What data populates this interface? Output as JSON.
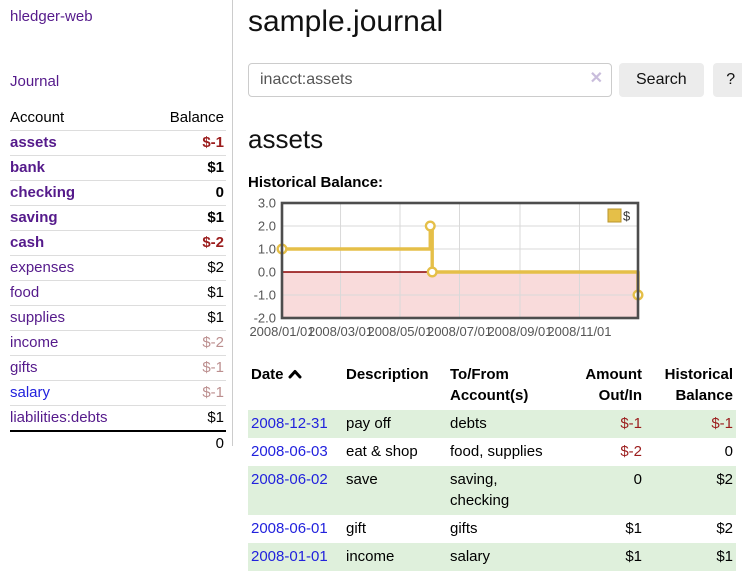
{
  "app": {
    "brand": "hledger-web",
    "nav": {
      "journal": "Journal"
    }
  },
  "colors": {
    "link_purple": "#551a8b",
    "link_blue": "#2222dd",
    "negative_strong": "#9b1c1c",
    "negative_soft": "#bc8f8f",
    "row_shade_green": "#dff0dc"
  },
  "sidebar": {
    "header": {
      "account": "Account",
      "balance": "Balance"
    },
    "rows": [
      {
        "label": "assets",
        "balance": "$-1"
      },
      {
        "label": "bank",
        "balance": "$1"
      },
      {
        "label": "checking",
        "balance": "0"
      },
      {
        "label": "saving",
        "balance": "$1"
      },
      {
        "label": "cash",
        "balance": "$-2"
      },
      {
        "label": "expenses",
        "balance": "$2"
      },
      {
        "label": "food",
        "balance": "$1"
      },
      {
        "label": "supplies",
        "balance": "$1"
      },
      {
        "label": "income",
        "balance": "$-2"
      },
      {
        "label": "gifts",
        "balance": "$-1"
      },
      {
        "label": "salary",
        "balance": "$-1"
      },
      {
        "label": "liabilities:debts",
        "balance": "$1"
      }
    ],
    "total": "0"
  },
  "main": {
    "title": "sample.journal",
    "search": {
      "value": "inacct:assets",
      "clear_icon": "✕",
      "search_button": "Search",
      "help_button": "?"
    },
    "account_heading": "assets",
    "chart_heading": "Historical Balance:"
  },
  "chart_data": {
    "type": "line",
    "step": true,
    "title": "Historical Balance:",
    "series": [
      {
        "name": "$",
        "color": "#e5bf48",
        "points": [
          [
            "2008-01-01",
            1.0
          ],
          [
            "2008-06-01",
            2.0
          ],
          [
            "2008-06-03",
            0.0
          ],
          [
            "2008-12-31",
            -1.0
          ]
        ]
      }
    ],
    "xrange": [
      "2008-01-01",
      "2008-12-31"
    ],
    "ylim": [
      -2.0,
      3.0
    ],
    "yticks": [
      3.0,
      2.0,
      1.0,
      0.0,
      -1.0,
      -2.0
    ],
    "xticks": [
      "2008/01/01",
      "2008/03/01",
      "2008/05/01",
      "2008/07/01",
      "2008/09/01",
      "2008/11/01"
    ],
    "grid": true,
    "legend_position": "top-right",
    "negative_region_color": "#f9dbdb",
    "zero_line_color": "#8b0000",
    "border_color": "#4d4d4d",
    "grid_color": "#d9d9d9"
  },
  "register": {
    "headers": {
      "date": "Date",
      "description": "Description",
      "tofrom": [
        "To/From",
        "Account(s)"
      ],
      "amount": [
        "Amount",
        "Out/In"
      ],
      "historical": [
        "Historical",
        "Balance"
      ]
    },
    "rows": [
      {
        "date": "2008-12-31",
        "description": "pay off",
        "accounts": "debts",
        "amount": "$-1",
        "balance": "$-1"
      },
      {
        "date": "2008-06-03",
        "description": "eat & shop",
        "accounts": "food, supplies",
        "amount": "$-2",
        "balance": "0"
      },
      {
        "date": "2008-06-02",
        "description": "save",
        "accounts": "saving, checking",
        "amount": "0",
        "balance": "$2"
      },
      {
        "date": "2008-06-01",
        "description": "gift",
        "accounts": "gifts",
        "amount": "$1",
        "balance": "$2"
      },
      {
        "date": "2008-01-01",
        "description": "income",
        "accounts": "salary",
        "amount": "$1",
        "balance": "$1"
      }
    ]
  }
}
